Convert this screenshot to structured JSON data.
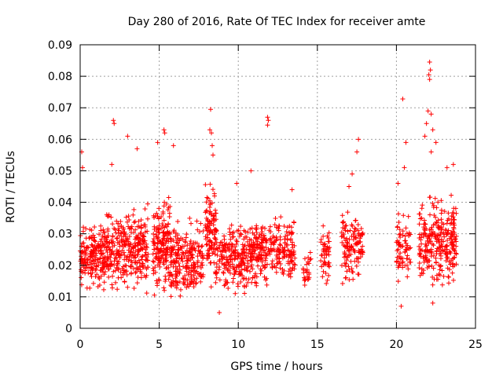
{
  "chart_data": {
    "type": "scatter",
    "title": "Day 280 of 2016, Rate Of TEC Index for receiver amte",
    "xlabel": "GPS time / hours",
    "ylabel": "ROTI / TECUs",
    "xlim": [
      0,
      25
    ],
    "ylim": [
      0,
      0.09
    ],
    "x_ticks": [
      0,
      5,
      10,
      15,
      20,
      25
    ],
    "x_tick_labels": [
      "0",
      "5",
      "10",
      "15",
      "20",
      "25"
    ],
    "y_ticks": [
      0,
      0.01,
      0.02,
      0.03,
      0.04,
      0.05,
      0.06,
      0.07,
      0.08,
      0.09
    ],
    "y_tick_labels": [
      "0",
      "0.01",
      "0.02",
      "0.03",
      "0.04",
      "0.05",
      "0.06",
      "0.07",
      "0.08",
      "0.09"
    ],
    "grid": true,
    "marker": "+",
    "marker_color": "#ff0000",
    "series": [
      {
        "name": "ROTI",
        "color": "#ff0000",
        "clusters": [
          {
            "x_range": [
              0.0,
              1.2
            ],
            "count": 140,
            "y_range": [
              0.01,
              0.036
            ]
          },
          {
            "x_range": [
              1.2,
              2.8
            ],
            "count": 190,
            "y_range": [
              0.009,
              0.04
            ]
          },
          {
            "x_range": [
              2.8,
              4.3
            ],
            "count": 180,
            "y_range": [
              0.009,
              0.042
            ]
          },
          {
            "x_range": [
              4.6,
              5.7
            ],
            "count": 170,
            "y_range": [
              0.008,
              0.045
            ]
          },
          {
            "x_range": [
              5.7,
              7.8
            ],
            "count": 230,
            "y_range": [
              0.007,
              0.037
            ]
          },
          {
            "x_range": [
              7.9,
              8.6
            ],
            "count": 110,
            "y_range": [
              0.008,
              0.05
            ]
          },
          {
            "x_range": [
              8.6,
              10.6
            ],
            "count": 200,
            "y_range": [
              0.008,
              0.036
            ]
          },
          {
            "x_range": [
              10.6,
              11.9
            ],
            "count": 150,
            "y_range": [
              0.01,
              0.038
            ]
          },
          {
            "x_range": [
              11.9,
              13.6
            ],
            "count": 140,
            "y_range": [
              0.012,
              0.038
            ]
          },
          {
            "x_range": [
              14.1,
              14.6
            ],
            "count": 25,
            "y_range": [
              0.01,
              0.025
            ]
          },
          {
            "x_range": [
              15.2,
              15.8
            ],
            "count": 50,
            "y_range": [
              0.012,
              0.034
            ]
          },
          {
            "x_range": [
              16.5,
              17.9
            ],
            "count": 120,
            "y_range": [
              0.012,
              0.04
            ]
          },
          {
            "x_range": [
              20.0,
              20.9
            ],
            "count": 70,
            "y_range": [
              0.008,
              0.04
            ]
          },
          {
            "x_range": [
              21.4,
              23.8
            ],
            "count": 280,
            "y_range": [
              0.01,
              0.045
            ]
          }
        ],
        "notable_points": [
          {
            "x": 0.1,
            "y": 0.056
          },
          {
            "x": 0.15,
            "y": 0.051
          },
          {
            "x": 2.1,
            "y": 0.066
          },
          {
            "x": 2.15,
            "y": 0.065
          },
          {
            "x": 3.0,
            "y": 0.061
          },
          {
            "x": 2.0,
            "y": 0.052
          },
          {
            "x": 3.6,
            "y": 0.057
          },
          {
            "x": 4.9,
            "y": 0.059
          },
          {
            "x": 5.3,
            "y": 0.063
          },
          {
            "x": 5.35,
            "y": 0.062
          },
          {
            "x": 5.9,
            "y": 0.058
          },
          {
            "x": 8.25,
            "y": 0.0695
          },
          {
            "x": 8.2,
            "y": 0.063
          },
          {
            "x": 8.3,
            "y": 0.062
          },
          {
            "x": 8.35,
            "y": 0.058
          },
          {
            "x": 8.4,
            "y": 0.055
          },
          {
            "x": 9.9,
            "y": 0.046
          },
          {
            "x": 10.8,
            "y": 0.05
          },
          {
            "x": 11.85,
            "y": 0.067
          },
          {
            "x": 11.9,
            "y": 0.066
          },
          {
            "x": 11.85,
            "y": 0.0645
          },
          {
            "x": 13.4,
            "y": 0.044
          },
          {
            "x": 17.0,
            "y": 0.045
          },
          {
            "x": 17.2,
            "y": 0.049
          },
          {
            "x": 17.5,
            "y": 0.056
          },
          {
            "x": 17.6,
            "y": 0.06
          },
          {
            "x": 20.4,
            "y": 0.0728
          },
          {
            "x": 20.1,
            "y": 0.046
          },
          {
            "x": 20.6,
            "y": 0.059
          },
          {
            "x": 20.5,
            "y": 0.051
          },
          {
            "x": 22.1,
            "y": 0.0845
          },
          {
            "x": 22.15,
            "y": 0.082
          },
          {
            "x": 22.05,
            "y": 0.0805
          },
          {
            "x": 22.1,
            "y": 0.079
          },
          {
            "x": 22.0,
            "y": 0.069
          },
          {
            "x": 22.2,
            "y": 0.068
          },
          {
            "x": 21.9,
            "y": 0.065
          },
          {
            "x": 22.3,
            "y": 0.063
          },
          {
            "x": 21.8,
            "y": 0.061
          },
          {
            "x": 22.5,
            "y": 0.059
          },
          {
            "x": 22.2,
            "y": 0.056
          },
          {
            "x": 23.6,
            "y": 0.052
          },
          {
            "x": 23.2,
            "y": 0.051
          },
          {
            "x": 20.3,
            "y": 0.007
          },
          {
            "x": 8.8,
            "y": 0.005
          },
          {
            "x": 22.3,
            "y": 0.008
          }
        ]
      }
    ]
  }
}
